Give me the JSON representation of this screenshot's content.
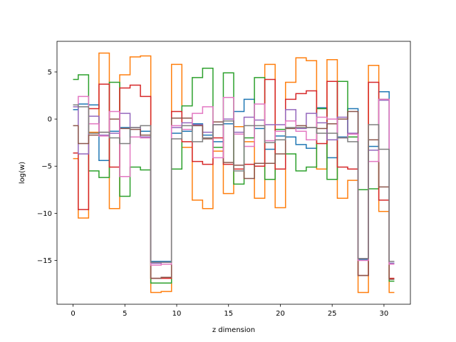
{
  "chart_data": {
    "type": "line",
    "step": "mid",
    "title": "",
    "xlabel": "z dimension",
    "ylabel": "log(w)",
    "xlim": [
      -1.55,
      32.55
    ],
    "ylim": [
      -19.65,
      8.25
    ],
    "xticks": [
      0,
      5,
      10,
      15,
      20,
      25,
      30
    ],
    "yticks": [
      5,
      0,
      -5,
      -10,
      -15
    ],
    "ytick_labels": [
      "5",
      "0",
      "−5",
      "−10",
      "−15"
    ],
    "grid": false,
    "x": [
      0,
      1,
      2,
      3,
      4,
      5,
      6,
      7,
      8,
      9,
      10,
      11,
      12,
      13,
      14,
      15,
      16,
      17,
      18,
      19,
      20,
      21,
      22,
      23,
      24,
      25,
      26,
      27,
      28,
      29,
      30,
      31
    ],
    "series": [
      {
        "color": "#1f77b4",
        "values": [
          1.0,
          1.6,
          1.5,
          -4.4,
          -1.3,
          -0.9,
          -1.9,
          -1.3,
          -15.1,
          -15.1,
          -1.5,
          -1.3,
          -0.5,
          -1.7,
          -2.4,
          -0.5,
          0.8,
          2.1,
          -1.0,
          -3.2,
          -1.8,
          -1.9,
          -2.7,
          -3.1,
          1.2,
          -4.1,
          -1.9,
          1.1,
          -14.9,
          -2.9,
          2.9,
          -15.3
        ]
      },
      {
        "color": "#ff7f0e",
        "values": [
          -4.2,
          -10.5,
          -1.4,
          7.0,
          -9.5,
          4.7,
          6.6,
          6.7,
          -18.4,
          -18.3,
          5.8,
          -3.0,
          -8.6,
          -9.5,
          -3.4,
          -7.9,
          -0.8,
          -2.4,
          -8.4,
          5.8,
          -9.4,
          3.9,
          6.5,
          6.2,
          -5.3,
          6.3,
          -8.4,
          -6.5,
          -18.4,
          5.7,
          -9.8,
          -18.4
        ]
      },
      {
        "color": "#2ca02c",
        "values": [
          4.2,
          4.7,
          -5.5,
          -6.2,
          3.9,
          -8.2,
          -5.1,
          -5.4,
          -17.4,
          -17.4,
          -5.3,
          1.4,
          4.4,
          5.4,
          -3.0,
          4.9,
          -6.9,
          -2.0,
          4.4,
          -6.4,
          -1.1,
          -3.7,
          -5.5,
          -5.1,
          1.1,
          -6.4,
          4.0,
          -1.9,
          -7.5,
          -7.4,
          2.1,
          -17.2
        ]
      },
      {
        "color": "#d62728",
        "values": [
          -3.6,
          -9.6,
          1.1,
          3.7,
          -5.1,
          3.3,
          3.6,
          2.4,
          -16.9,
          -16.9,
          0.8,
          -2.4,
          -4.5,
          -4.8,
          -2.0,
          -4.8,
          -5.3,
          -4.8,
          -5.0,
          4.2,
          -5.3,
          2.1,
          2.7,
          3.0,
          -2.6,
          4.0,
          -5.1,
          -5.3,
          -16.6,
          3.9,
          -8.6,
          -16.9
        ]
      },
      {
        "color": "#9467bd",
        "values": [
          1.3,
          -3.7,
          0.3,
          -1.7,
          -1.5,
          0.6,
          -0.9,
          -1.9,
          -15.3,
          -15.2,
          -0.9,
          -0.4,
          -0.6,
          -1.4,
          -0.6,
          0.0,
          -1.4,
          0.2,
          -0.1,
          -0.6,
          -0.6,
          1.0,
          -1.0,
          0.6,
          -0.4,
          -2.2,
          0.2,
          -1.5,
          -14.8,
          -3.3,
          2.0,
          -15.3
        ]
      },
      {
        "color": "#8c564b",
        "values": [
          -0.7,
          -2.6,
          -1.7,
          -1.4,
          0.0,
          -1.0,
          -1.1,
          -1.7,
          -16.9,
          -16.8,
          0.1,
          0.1,
          -0.7,
          -2.1,
          -0.3,
          -4.6,
          -4.9,
          -6.3,
          -4.7,
          -4.7,
          -3.7,
          -1.0,
          -0.7,
          -0.9,
          -1.0,
          -0.5,
          0.0,
          0.8,
          -16.6,
          -2.2,
          -7.2,
          -17.0
        ]
      },
      {
        "color": "#e377c2",
        "values": [
          1.5,
          2.4,
          -0.5,
          -1.8,
          0.8,
          -6.1,
          -1.9,
          -2.0,
          -15.5,
          -15.4,
          -0.7,
          -1.1,
          0.6,
          1.3,
          -4.1,
          2.3,
          -1.6,
          -2.9,
          1.6,
          -2.3,
          -1.3,
          -0.2,
          -1.3,
          -2.2,
          0.2,
          0.0,
          -2.0,
          -1.6,
          -15.0,
          -4.5,
          2.1,
          -15.4
        ]
      },
      {
        "color": "#7f7f7f",
        "values": [
          1.5,
          1.3,
          -1.5,
          -1.4,
          -2.0,
          -2.6,
          -0.9,
          -0.7,
          -15.2,
          -15.2,
          -2.1,
          -0.7,
          -2.4,
          -2.0,
          -0.6,
          -0.2,
          -5.5,
          -0.7,
          -0.7,
          -2.5,
          -2.2,
          -0.9,
          -0.9,
          -0.9,
          -1.5,
          -1.5,
          -2.0,
          -2.4,
          -14.8,
          -0.6,
          -3.2,
          -15.1
        ]
      }
    ]
  }
}
